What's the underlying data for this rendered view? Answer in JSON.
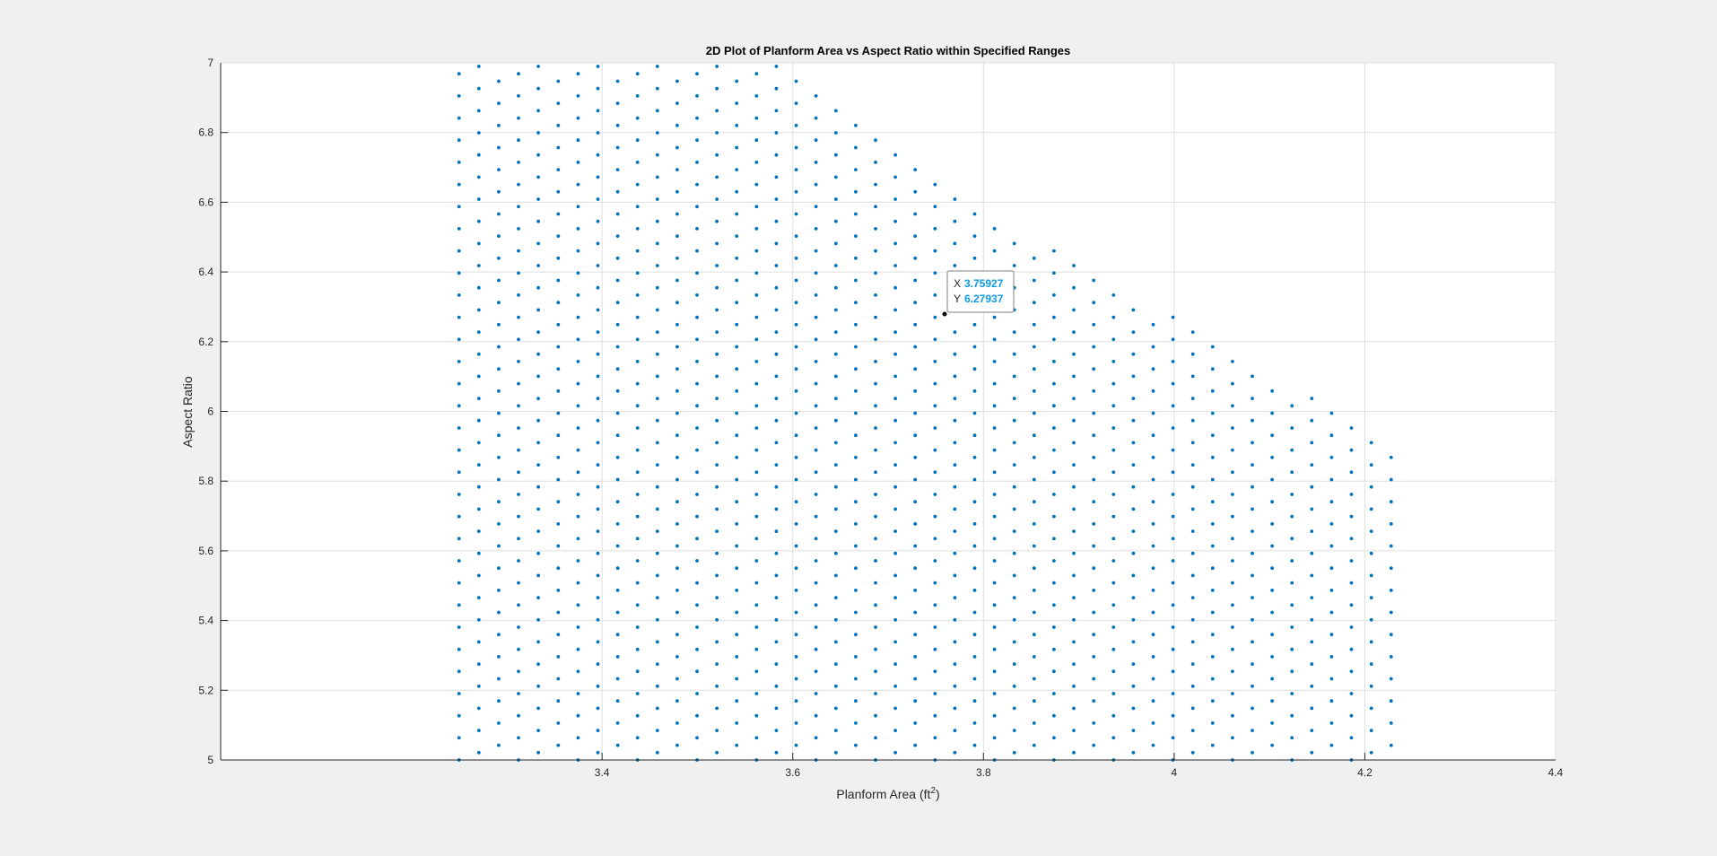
{
  "chart_data": {
    "type": "scatter",
    "title": "2D Plot of Planform Area vs Aspect Ratio within Specified Ranges",
    "xlabel": "Planform Area (ft",
    "xlabel_superscript": "2",
    "xlabel_suffix": ")",
    "ylabel": "Aspect Ratio",
    "xlim": [
      3.0,
      4.4
    ],
    "ylim": [
      5,
      7
    ],
    "xticks": [
      "3.4",
      "3.6",
      "3.8",
      "4",
      "4.2",
      "4.4"
    ],
    "yticks": [
      "5",
      "5.2",
      "5.4",
      "5.6",
      "5.8",
      "6",
      "6.2",
      "6.4",
      "6.6",
      "6.8",
      "7"
    ],
    "grid": true,
    "marker_color": "#0072bd",
    "series": [
      {
        "marker": "point",
        "domain": {
          "x_min": 3.25,
          "x_max": 4.24,
          "y_min": 5,
          "y_max": 7,
          "upper_boundary": [
            [
              3.58,
              7.0
            ],
            [
              3.8,
              6.58
            ],
            [
              4.0,
              6.27
            ],
            [
              4.17,
              6.0
            ],
            [
              4.24,
              5.9
            ]
          ]
        }
      }
    ],
    "datatip": {
      "x_label": "X",
      "x_value": "3.75927",
      "y_label": "Y",
      "y_value": "6.27937",
      "point": [
        3.75927,
        6.27937
      ]
    }
  }
}
